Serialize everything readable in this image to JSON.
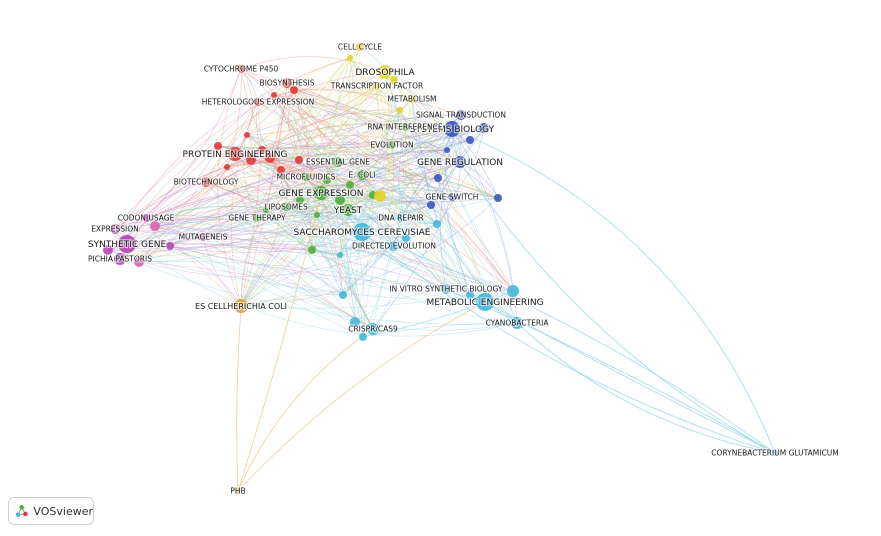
{
  "app": {
    "logo_text": "VOSviewer"
  },
  "clusters": {
    "red": "#e0393b",
    "green": "#4caf38",
    "blue": "#3c55c0",
    "yellow": "#e3d32a",
    "purple": "#b347b3",
    "cyan": "#42b8d9",
    "orange": "#d8a23a",
    "pink": "#d963b2"
  },
  "nodes": [
    {
      "label": "CELL CYCLE",
      "cluster": "yellow"
    },
    {
      "label": "DROSOPHILA",
      "cluster": "yellow"
    },
    {
      "label": "TRANSCRIPTION FACTOR",
      "cluster": "yellow"
    },
    {
      "label": "METABOLISM",
      "cluster": "yellow"
    },
    {
      "label": "CYTOCHROME P450",
      "cluster": "red"
    },
    {
      "label": "BIOSYNTHESIS",
      "cluster": "red"
    },
    {
      "label": "HETEROLOGOUS EXPRESSION",
      "cluster": "red"
    },
    {
      "label": "PROTEIN ENGINEERING",
      "cluster": "red"
    },
    {
      "label": "BIOTECHNOLOGY",
      "cluster": "red"
    },
    {
      "label": "SIGNAL TRANSDUCTION",
      "cluster": "blue"
    },
    {
      "label": "SYSTEMS BIOLOGY",
      "cluster": "blue"
    },
    {
      "label": "GENE REGULATION",
      "cluster": "blue"
    },
    {
      "label": "GENE SWITCH",
      "cluster": "blue"
    },
    {
      "label": "RNA INTERFERENCE",
      "cluster": "green"
    },
    {
      "label": "EVOLUTION",
      "cluster": "green"
    },
    {
      "label": "ESSENTIAL GENE",
      "cluster": "green"
    },
    {
      "label": "MICROFLUIDICS",
      "cluster": "green"
    },
    {
      "label": "E. COLI",
      "cluster": "green"
    },
    {
      "label": "GENE EXPRESSION",
      "cluster": "green"
    },
    {
      "label": "LIPOSOMES",
      "cluster": "green"
    },
    {
      "label": "YEAST",
      "cluster": "green"
    },
    {
      "label": "GENE THERAPY",
      "cluster": "green"
    },
    {
      "label": "DNA REPAIR",
      "cluster": "cyan"
    },
    {
      "label": "SACCHAROMYCES CEREVISIAE",
      "cluster": "cyan"
    },
    {
      "label": "DIRECTED EVOLUTION",
      "cluster": "cyan"
    },
    {
      "label": "CODON USAGE",
      "cluster": "purple"
    },
    {
      "label": "EXPRESSION",
      "cluster": "purple"
    },
    {
      "label": "MUTAGENEIS",
      "cluster": "purple"
    },
    {
      "label": "SYNTHETIC GENE",
      "cluster": "purple"
    },
    {
      "label": "PICHIA PASTORIS",
      "cluster": "purple"
    },
    {
      "label": "IN VITRO SYNTHETIC BIOLOGY",
      "cluster": "cyan"
    },
    {
      "label": "METABOLIC ENGINEERING",
      "cluster": "cyan"
    },
    {
      "label": "CYANOBACTERIA",
      "cluster": "cyan"
    },
    {
      "label": "CRISPR/CAS9",
      "cluster": "cyan"
    },
    {
      "label": "ES CELLHERICHIA COLI",
      "cluster": "orange"
    },
    {
      "label": "CORYNEBACTERIUM GLUTAMICUM",
      "cluster": "cyan"
    },
    {
      "label": "PHB",
      "cluster": "orange"
    }
  ]
}
